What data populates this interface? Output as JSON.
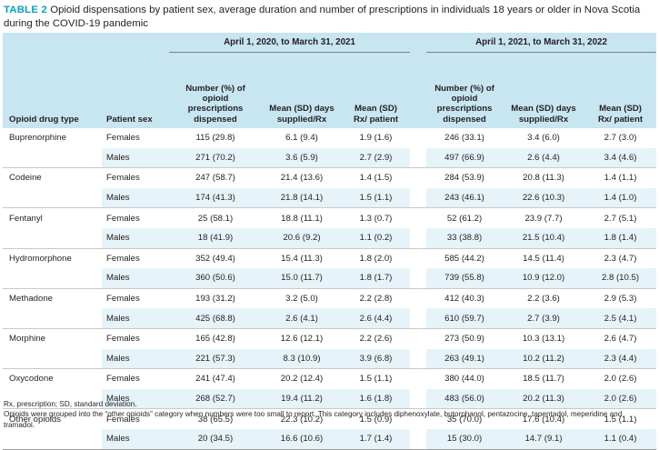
{
  "title": {
    "label": "TABLE 2",
    "text": "Opioid dispensations by patient sex, average duration and number of prescriptions in individuals 18 years or older in Nova Scotia during the COVID-19 pandemic"
  },
  "table": {
    "period1": "April 1, 2020, to March 31, 2021",
    "period2": "April 1, 2021, to March 31, 2022",
    "col_drug": "Opioid drug type",
    "col_sex": "Patient sex",
    "col_number": "Number (%) of opioid prescriptions dispensed",
    "col_days": "Mean (SD) days supplied/Rx",
    "col_rx": "Mean (SD) Rx/ patient",
    "rows": [
      {
        "drug": "Buprenorphine",
        "sex": "Females",
        "n1": "115 (29.8)",
        "d1": "6.1 (9.4)",
        "r1": "1.9 (1.6)",
        "n2": "246 (33.1)",
        "d2": "3.4 (6.0)",
        "r2": "2.7 (3.0)"
      },
      {
        "drug": "",
        "sex": "Males",
        "n1": "271 (70.2)",
        "d1": "3.6 (5.9)",
        "r1": "2.7 (2.9)",
        "n2": "497 (66.9)",
        "d2": "2.6 (4.4)",
        "r2": "3.4 (4.6)"
      },
      {
        "drug": "Codeine",
        "sex": "Females",
        "n1": "247 (58.7)",
        "d1": "21.4 (13.6)",
        "r1": "1.4 (1.5)",
        "n2": "284 (53.9)",
        "d2": "20.8 (11.3)",
        "r2": "1.4 (1.1)"
      },
      {
        "drug": "",
        "sex": "Males",
        "n1": "174 (41.3)",
        "d1": "21.8 (14.1)",
        "r1": "1.5 (1.1)",
        "n2": "243 (46.1)",
        "d2": "22.6 (10.3)",
        "r2": "1.4 (1.0)"
      },
      {
        "drug": "Fentanyl",
        "sex": "Females",
        "n1": "25 (58.1)",
        "d1": "18.8 (11.1)",
        "r1": "1.3 (0.7)",
        "n2": "52 (61.2)",
        "d2": "23.9 (7.7)",
        "r2": "2.7 (5.1)"
      },
      {
        "drug": "",
        "sex": "Males",
        "n1": "18 (41.9)",
        "d1": "20.6 (9.2)",
        "r1": "1.1 (0.2)",
        "n2": "33 (38.8)",
        "d2": "21.5 (10.4)",
        "r2": "1.8 (1.4)"
      },
      {
        "drug": "Hydromorphone",
        "sex": "Females",
        "n1": "352 (49.4)",
        "d1": "15.4 (11.3)",
        "r1": "1.8 (2.0)",
        "n2": "585 (44.2)",
        "d2": "14.5 (11.4)",
        "r2": "2.3 (4.7)"
      },
      {
        "drug": "",
        "sex": "Males",
        "n1": "360 (50.6)",
        "d1": "15.0 (11.7)",
        "r1": "1.8 (1.7)",
        "n2": "739 (55.8)",
        "d2": "10.9 (12.0)",
        "r2": "2.8 (10.5)"
      },
      {
        "drug": "Methadone",
        "sex": "Females",
        "n1": "193 (31.2)",
        "d1": "3.2 (5.0)",
        "r1": "2.2 (2.8)",
        "n2": "412 (40.3)",
        "d2": "2.2 (3.6)",
        "r2": "2.9 (5.3)"
      },
      {
        "drug": "",
        "sex": "Males",
        "n1": "425 (68.8)",
        "d1": "2.6 (4.1)",
        "r1": "2.6 (4.4)",
        "n2": "610 (59.7)",
        "d2": "2.7 (3.9)",
        "r2": "2.5 (4.1)"
      },
      {
        "drug": "Morphine",
        "sex": "Females",
        "n1": "165 (42.8)",
        "d1": "12.6 (12.1)",
        "r1": "2.2 (2.6)",
        "n2": "273 (50.9)",
        "d2": "10.3 (13.1)",
        "r2": "2.6 (4.7)"
      },
      {
        "drug": "",
        "sex": "Males",
        "n1": "221 (57.3)",
        "d1": "8.3 (10.9)",
        "r1": "3.9 (6.8)",
        "n2": "263 (49.1)",
        "d2": "10.2 (11.2)",
        "r2": "2.3 (4.4)"
      },
      {
        "drug": "Oxycodone",
        "sex": "Females",
        "n1": "241 (47.4)",
        "d1": "20.2 (12.4)",
        "r1": "1.5 (1.1)",
        "n2": "380 (44.0)",
        "d2": "18.5 (11.7)",
        "r2": "2.0 (2.6)"
      },
      {
        "drug": "",
        "sex": "Males",
        "n1": "268 (52.7)",
        "d1": "19.4 (11.2)",
        "r1": "1.6 (1.8)",
        "n2": "483 (56.0)",
        "d2": "20.2 (11.3)",
        "r2": "2.0 (2.6)"
      },
      {
        "drug": "Other opioids",
        "sex": "Females",
        "n1": "38 (65.5)",
        "d1": "22.3 (10.2)",
        "r1": "1.5 (0.9)",
        "n2": "35 (70.0)",
        "d2": "17.6 (10.4)",
        "r2": "1.5 (1.1)"
      },
      {
        "drug": "",
        "sex": "Males",
        "n1": "20 (34.5)",
        "d1": "16.6 (10.6)",
        "r1": "1.7 (1.4)",
        "n2": "15 (30.0)",
        "d2": "14.7 (9.1)",
        "r2": "1.1 (0.4)"
      }
    ]
  },
  "footnotes": {
    "abbrev": "Rx, prescription; SD, standard deviation.",
    "note": "Opioids were grouped into the “other opioids” category when numbers were too small to report. This category includes diphenoxylate, butorphanol, pentazocine, tapentadol, meperidine and tramadol."
  }
}
